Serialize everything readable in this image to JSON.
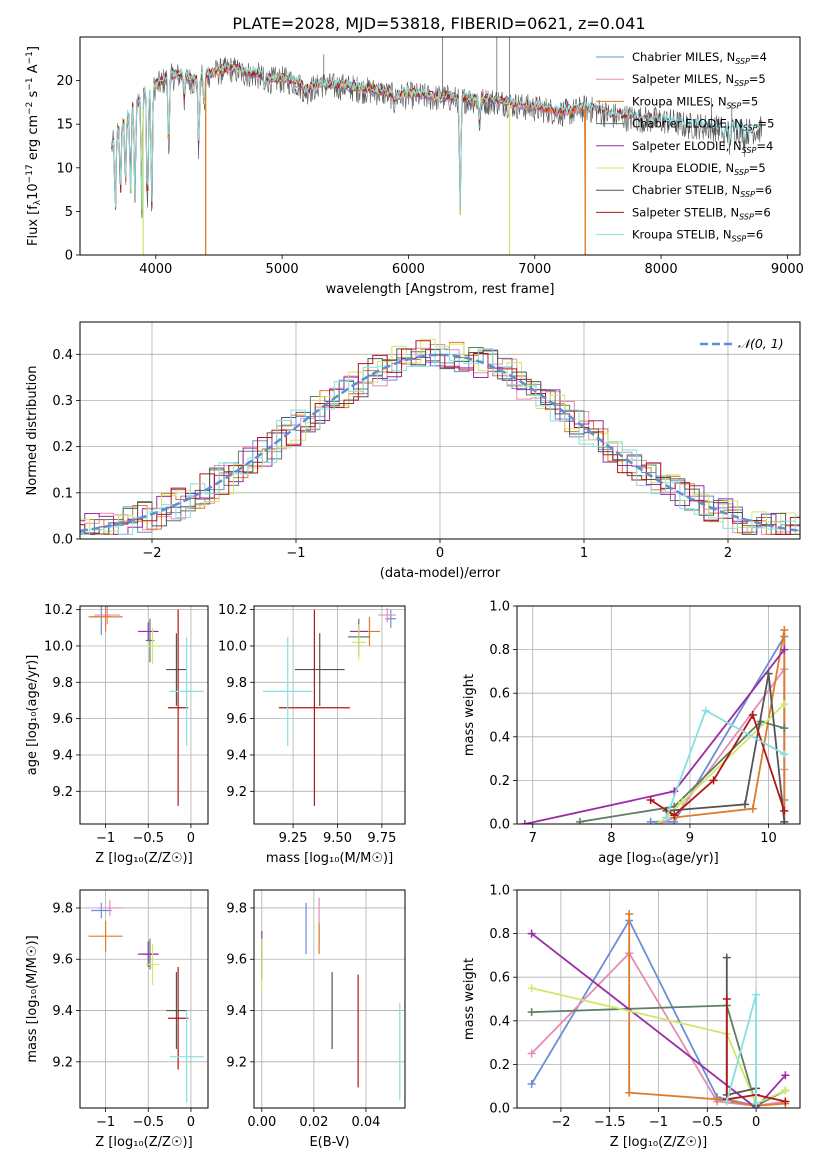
{
  "figure": {
    "title": "PLATE=2028, MJD=53818, FIBERID=0621, z=0.041"
  },
  "palette": {
    "Chabrier MILES": "#6a8fd8",
    "Salpeter MILES": "#e68cb6",
    "Kroupa MILES": "#e07b28",
    "Chabrier ELODIE": "#5e7f63",
    "Salpeter ELODIE": "#9a2ca6",
    "Kroupa ELODIE": "#cfe86a",
    "Chabrier STELIB": "#555555",
    "Salpeter STELIB": "#b01818",
    "Kroupa STELIB": "#86e0e0",
    "gauss": "#5b8fd8"
  },
  "chart_data": [
    {
      "id": "spectrum",
      "type": "line",
      "title": "PLATE=2028, MJD=53818, FIBERID=0621, z=0.041",
      "xlabel": "wavelength [Angstrom, rest frame]",
      "ylabel_parts": [
        "Flux [f",
        "λ",
        "10",
        "−17",
        " erg cm",
        "−2",
        " s",
        "−1",
        " A",
        "−1",
        "]"
      ],
      "xlim": [
        3400,
        9100
      ],
      "ylim": [
        0,
        25
      ],
      "xticks": [
        4000,
        5000,
        6000,
        7000,
        8000,
        9000
      ],
      "yticks": [
        0,
        5,
        10,
        15,
        20
      ],
      "grid": false,
      "legend_position": "top-right",
      "legend": [
        {
          "name": "Chabrier MILES",
          "n": 4
        },
        {
          "name": "Salpeter MILES",
          "n": 5
        },
        {
          "name": "Kroupa MILES",
          "n": 5
        },
        {
          "name": "Chabrier ELODIE",
          "n": 5
        },
        {
          "name": "Salpeter ELODIE",
          "n": 4
        },
        {
          "name": "Kroupa ELODIE",
          "n": 5
        },
        {
          "name": "Chabrier STELIB",
          "n": 6
        },
        {
          "name": "Salpeter STELIB",
          "n": 6
        },
        {
          "name": "Kroupa STELIB",
          "n": 6
        }
      ],
      "continuum": [
        [
          3650,
          12.5
        ],
        [
          3700,
          14.5
        ],
        [
          3800,
          16.5
        ],
        [
          3900,
          18.8
        ],
        [
          4000,
          19.5
        ],
        [
          4100,
          20.5
        ],
        [
          4200,
          20.8
        ],
        [
          4300,
          20.0
        ],
        [
          4400,
          20.8
        ],
        [
          4500,
          21.2
        ],
        [
          4600,
          21.5
        ],
        [
          4700,
          21.0
        ],
        [
          4800,
          20.8
        ],
        [
          4900,
          20.2
        ],
        [
          5000,
          20.3
        ],
        [
          5100,
          20.0
        ],
        [
          5200,
          19.0
        ],
        [
          5300,
          19.8
        ],
        [
          5400,
          19.5
        ],
        [
          5500,
          19.5
        ],
        [
          5600,
          19.2
        ],
        [
          5700,
          19.0
        ],
        [
          5800,
          18.8
        ],
        [
          5900,
          18.3
        ],
        [
          6000,
          18.5
        ],
        [
          6100,
          18.4
        ],
        [
          6200,
          18.2
        ],
        [
          6300,
          18.2
        ],
        [
          6400,
          18.0
        ],
        [
          6500,
          18.0
        ],
        [
          6600,
          17.8
        ],
        [
          6700,
          17.8
        ],
        [
          6800,
          17.5
        ],
        [
          6900,
          17.2
        ],
        [
          7000,
          17.0
        ],
        [
          7100,
          16.8
        ],
        [
          7200,
          16.5
        ],
        [
          7300,
          16.6
        ],
        [
          7400,
          17.0
        ],
        [
          7500,
          16.7
        ],
        [
          7600,
          16.2
        ],
        [
          7700,
          16.0
        ],
        [
          7800,
          15.8
        ],
        [
          7900,
          15.7
        ],
        [
          8000,
          15.6
        ],
        [
          8100,
          15.4
        ],
        [
          8200,
          15.0
        ],
        [
          8300,
          15.0
        ],
        [
          8400,
          14.8
        ],
        [
          8500,
          14.6
        ],
        [
          8600,
          14.6
        ],
        [
          8700,
          14.4
        ],
        [
          8800,
          14.6
        ]
      ],
      "absorption": [
        [
          3680,
          5.0
        ],
        [
          3720,
          7.0
        ],
        [
          3760,
          8.0
        ],
        [
          3800,
          7.0
        ],
        [
          3835,
          6.0
        ],
        [
          3889,
          5.0
        ],
        [
          3934,
          4.5
        ],
        [
          3968,
          5.0
        ],
        [
          4102,
          12.0
        ],
        [
          4226,
          18.0
        ],
        [
          4340,
          12.0
        ],
        [
          4383,
          17.0
        ],
        [
          4861,
          19.0
        ],
        [
          5175,
          18.5
        ],
        [
          5270,
          19.0
        ],
        [
          5890,
          17.5
        ],
        [
          6410,
          5.0
        ],
        [
          6563,
          15.0
        ],
        [
          8498,
          13.0
        ],
        [
          8542,
          12.5
        ],
        [
          8662,
          13.0
        ]
      ],
      "spikes": [
        [
          5330,
          23.0
        ],
        [
          6270,
          25.0
        ],
        [
          6700,
          25.0
        ],
        [
          6800,
          25.0
        ],
        [
          8400,
          18.0
        ],
        [
          8560,
          17.5
        ]
      ]
    },
    {
      "id": "residuals",
      "type": "histogram",
      "xlabel": "(data-model)/error",
      "ylabel": "Normed distribution",
      "xlim": [
        -2.5,
        2.5
      ],
      "ylim": [
        0,
        0.47
      ],
      "xticks": [
        -2,
        -1,
        0,
        1,
        2
      ],
      "yticks": [
        0.0,
        0.1,
        0.2,
        0.3,
        0.4
      ],
      "grid": true,
      "legend_position": "top-right",
      "legend_label": "𝒩(0, 1)",
      "gauss_mu": 0,
      "gauss_sigma": 1,
      "bin_width": 0.1
    },
    {
      "id": "age-vs-Z",
      "type": "scatter",
      "xlabel": "Z [log₁₀(Z/Z☉)]",
      "ylabel": "age  [log₁₀(age/yr)]",
      "xlim": [
        -1.3,
        0.2
      ],
      "ylim": [
        9.02,
        10.22
      ],
      "xticks": [
        -1.0,
        -0.5,
        0.0
      ],
      "yticks": [
        9.2,
        9.4,
        9.6,
        9.8,
        10.0,
        10.2
      ],
      "grid": true,
      "points": [
        {
          "model": "Chabrier MILES",
          "x": -1.05,
          "y": 10.16,
          "xerr": 0.12,
          "yerr": 0.1
        },
        {
          "model": "Salpeter MILES",
          "x": -0.98,
          "y": 10.17,
          "xerr": 0.15,
          "yerr": 0.05
        },
        {
          "model": "Kroupa MILES",
          "x": -1.0,
          "y": 10.16,
          "xerr": 0.2,
          "yerr": 0.08
        },
        {
          "model": "Chabrier ELODIE",
          "x": -0.48,
          "y": 10.03,
          "xerr": 0.05,
          "yerr": 0.12
        },
        {
          "model": "Salpeter ELODIE",
          "x": -0.5,
          "y": 10.08,
          "xerr": 0.12,
          "yerr": 0.05
        },
        {
          "model": "Kroupa ELODIE",
          "x": -0.45,
          "y": 10.0,
          "xerr": 0.08,
          "yerr": 0.1
        },
        {
          "model": "Chabrier STELIB",
          "x": -0.17,
          "y": 9.87,
          "xerr": 0.12,
          "yerr": 0.2
        },
        {
          "model": "Salpeter STELIB",
          "x": -0.15,
          "y": 9.66,
          "xerr": 0.12,
          "yerr": 0.54
        },
        {
          "model": "Kroupa STELIB",
          "x": -0.05,
          "y": 9.75,
          "xerr": 0.2,
          "yerr": 0.3
        }
      ]
    },
    {
      "id": "age-vs-mass",
      "type": "scatter",
      "xlabel": "mass [log₁₀(M/M☉)]",
      "ylabel": "",
      "xlim": [
        9.03,
        9.88
      ],
      "ylim": [
        9.02,
        10.22
      ],
      "xticks": [
        9.25,
        9.5,
        9.75
      ],
      "yticks": [
        9.2,
        9.4,
        9.6,
        9.8,
        10.0,
        10.2
      ],
      "xticklabels": [
        "9.25",
        "9.50",
        "9.75"
      ],
      "grid": true,
      "points": [
        {
          "model": "Chabrier MILES",
          "x": 9.8,
          "y": 10.15,
          "xerr": 0.03,
          "yerr": 0.05
        },
        {
          "model": "Salpeter MILES",
          "x": 9.78,
          "y": 10.17,
          "xerr": 0.05,
          "yerr": 0.04
        },
        {
          "model": "Kroupa MILES",
          "x": 9.68,
          "y": 10.08,
          "xerr": 0.06,
          "yerr": 0.08
        },
        {
          "model": "Chabrier ELODIE",
          "x": 9.62,
          "y": 10.05,
          "xerr": 0.06,
          "yerr": 0.1
        },
        {
          "model": "Salpeter ELODIE",
          "x": 9.62,
          "y": 10.08,
          "xerr": 0.05,
          "yerr": 0.04
        },
        {
          "model": "Kroupa ELODIE",
          "x": 9.62,
          "y": 10.02,
          "xerr": 0.04,
          "yerr": 0.1
        },
        {
          "model": "Chabrier STELIB",
          "x": 9.4,
          "y": 9.87,
          "xerr": 0.14,
          "yerr": 0.2
        },
        {
          "model": "Salpeter STELIB",
          "x": 9.37,
          "y": 9.66,
          "xerr": 0.2,
          "yerr": 0.54
        },
        {
          "model": "Kroupa STELIB",
          "x": 9.22,
          "y": 9.75,
          "xerr": 0.14,
          "yerr": 0.3
        }
      ]
    },
    {
      "id": "mass-weight-vs-age",
      "type": "line",
      "xlabel": "age  [log₁₀(age/yr)]",
      "ylabel": "mass weight",
      "xlim": [
        6.8,
        10.4
      ],
      "ylim": [
        0,
        1.0
      ],
      "xticks": [
        7,
        8,
        9,
        10
      ],
      "yticks": [
        0.0,
        0.2,
        0.4,
        0.6,
        0.8,
        1.0
      ],
      "grid": true,
      "series": [
        {
          "model": "Chabrier MILES",
          "x": [
            8.5,
            8.8,
            10.2,
            10.2
          ],
          "y": [
            0.01,
            0.01,
            0.86,
            0.11
          ]
        },
        {
          "model": "Salpeter MILES",
          "x": [
            8.6,
            8.8,
            10.2,
            10.2,
            10.2
          ],
          "y": [
            0.0,
            0.03,
            0.71,
            0.25,
            0.01
          ]
        },
        {
          "model": "Kroupa MILES",
          "x": [
            8.8,
            9.8,
            10.2,
            10.2
          ],
          "y": [
            0.03,
            0.07,
            0.89,
            0.01
          ]
        },
        {
          "model": "Chabrier ELODIE",
          "x": [
            7.6,
            8.8,
            9.9,
            10.2
          ],
          "y": [
            0.01,
            0.08,
            0.47,
            0.44
          ]
        },
        {
          "model": "Salpeter ELODIE",
          "x": [
            6.9,
            8.8,
            10.2
          ],
          "y": [
            0.0,
            0.15,
            0.8
          ]
        },
        {
          "model": "Kroupa ELODIE",
          "x": [
            8.6,
            8.9,
            10.2
          ],
          "y": [
            0.0,
            0.1,
            0.55
          ]
        },
        {
          "model": "Chabrier STELIB",
          "x": [
            8.7,
            9.7,
            10.0,
            10.2
          ],
          "y": [
            0.06,
            0.09,
            0.69,
            0.01
          ]
        },
        {
          "model": "Salpeter STELIB",
          "x": [
            8.5,
            8.8,
            9.3,
            9.8,
            10.2
          ],
          "y": [
            0.11,
            0.04,
            0.2,
            0.5,
            0.06
          ]
        },
        {
          "model": "Kroupa STELIB",
          "x": [
            8.7,
            9.2,
            10.2
          ],
          "y": [
            0.03,
            0.52,
            0.32
          ]
        }
      ]
    },
    {
      "id": "mass-vs-Z",
      "type": "scatter",
      "xlabel": "Z [log₁₀(Z/Z☉)]",
      "ylabel": "mass [log₁₀(M/M☉)]",
      "xlim": [
        -1.3,
        0.2
      ],
      "ylim": [
        9.02,
        9.87
      ],
      "xticks": [
        -1.0,
        -0.5,
        0.0
      ],
      "yticks": [
        9.2,
        9.4,
        9.6,
        9.8
      ],
      "grid": true,
      "points": [
        {
          "model": "Chabrier MILES",
          "x": -1.05,
          "y": 9.79,
          "xerr": 0.12,
          "yerr": 0.03
        },
        {
          "model": "Salpeter MILES",
          "x": -0.95,
          "y": 9.8,
          "xerr": 0.15,
          "yerr": 0.03
        },
        {
          "model": "Kroupa MILES",
          "x": -1.0,
          "y": 9.69,
          "xerr": 0.2,
          "yerr": 0.06
        },
        {
          "model": "Chabrier ELODIE",
          "x": -0.48,
          "y": 9.62,
          "xerr": 0.1,
          "yerr": 0.06
        },
        {
          "model": "Salpeter ELODIE",
          "x": -0.5,
          "y": 9.62,
          "xerr": 0.12,
          "yerr": 0.05
        },
        {
          "model": "Kroupa ELODIE",
          "x": -0.45,
          "y": 9.58,
          "xerr": 0.08,
          "yerr": 0.08
        },
        {
          "model": "Chabrier STELIB",
          "x": -0.17,
          "y": 9.4,
          "xerr": 0.12,
          "yerr": 0.15
        },
        {
          "model": "Salpeter STELIB",
          "x": -0.15,
          "y": 9.37,
          "xerr": 0.12,
          "yerr": 0.2
        },
        {
          "model": "Kroupa STELIB",
          "x": -0.05,
          "y": 9.22,
          "xerr": 0.2,
          "yerr": 0.18
        }
      ]
    },
    {
      "id": "mass-vs-ebv",
      "type": "scatter",
      "xlabel": "E(B-V)",
      "ylabel": "",
      "xlim": [
        -0.003,
        0.055
      ],
      "ylim": [
        9.02,
        9.87
      ],
      "xticks": [
        0.0,
        0.02,
        0.04
      ],
      "xticklabels": [
        "0.00",
        "0.02",
        "0.04"
      ],
      "yticks": [
        9.2,
        9.4,
        9.6,
        9.8
      ],
      "grid": true,
      "points": [
        {
          "model": "Chabrier MILES",
          "x": 0.017,
          "y": 9.72,
          "xerr": 0,
          "yerr": 0.1
        },
        {
          "model": "Salpeter MILES",
          "x": 0.022,
          "y": 9.74,
          "xerr": 0,
          "yerr": 0.1
        },
        {
          "model": "Kroupa MILES",
          "x": 0.022,
          "y": 9.68,
          "xerr": 0,
          "yerr": 0.06
        },
        {
          "model": "Chabrier ELODIE",
          "x": 0.0,
          "y": 9.6,
          "xerr": 0,
          "yerr": 0.08
        },
        {
          "model": "Salpeter ELODIE",
          "x": 0.0,
          "y": 9.62,
          "xerr": 0,
          "yerr": 0.09
        },
        {
          "model": "Kroupa ELODIE",
          "x": 0.0,
          "y": 9.58,
          "xerr": 0,
          "yerr": 0.1
        },
        {
          "model": "Chabrier STELIB",
          "x": 0.027,
          "y": 9.4,
          "xerr": 0,
          "yerr": 0.15
        },
        {
          "model": "Salpeter STELIB",
          "x": 0.037,
          "y": 9.32,
          "xerr": 0,
          "yerr": 0.22
        },
        {
          "model": "Kroupa STELIB",
          "x": 0.053,
          "y": 9.24,
          "xerr": 0,
          "yerr": 0.19
        }
      ]
    },
    {
      "id": "mass-weight-vs-Z",
      "type": "line",
      "xlabel": "Z [log₁₀(Z/Z☉)]",
      "ylabel": "mass weight",
      "xlim": [
        -2.45,
        0.45
      ],
      "ylim": [
        0,
        1.0
      ],
      "xticks": [
        -2.0,
        -1.5,
        -1.0,
        -0.5,
        0.0
      ],
      "yticks": [
        0.0,
        0.2,
        0.4,
        0.6,
        0.8,
        1.0
      ],
      "grid": true,
      "series": [
        {
          "model": "Chabrier MILES",
          "x": [
            -2.3,
            -1.3,
            -0.4,
            0.0
          ],
          "y": [
            0.11,
            0.86,
            0.05,
            0.01
          ]
        },
        {
          "model": "Salpeter MILES",
          "x": [
            -2.3,
            -1.3,
            -0.4,
            0.0,
            0.3
          ],
          "y": [
            0.25,
            0.71,
            0.03,
            0.01,
            0.03
          ]
        },
        {
          "model": "Kroupa MILES",
          "x": [
            -1.3,
            -1.3,
            -0.4,
            0.0,
            0.3
          ],
          "y": [
            0.89,
            0.07,
            0.04,
            0.01,
            0.02
          ]
        },
        {
          "model": "Chabrier ELODIE",
          "x": [
            -2.3,
            -0.3,
            0.0,
            0.3
          ],
          "y": [
            0.44,
            0.47,
            0.01,
            0.08
          ]
        },
        {
          "model": "Salpeter ELODIE",
          "x": [
            -2.3,
            0.0,
            0.3
          ],
          "y": [
            0.8,
            0.0,
            0.15
          ]
        },
        {
          "model": "Kroupa ELODIE",
          "x": [
            -2.3,
            -0.3,
            0.0,
            0.3
          ],
          "y": [
            0.55,
            0.34,
            0.02,
            0.08
          ]
        },
        {
          "model": "Chabrier STELIB",
          "x": [
            -0.3,
            -0.3,
            0.0,
            0.0
          ],
          "y": [
            0.69,
            0.06,
            0.09,
            0.01
          ]
        },
        {
          "model": "Salpeter STELIB",
          "x": [
            -0.3,
            -0.3,
            0.0,
            0.3
          ],
          "y": [
            0.5,
            0.04,
            0.06,
            0.03
          ]
        },
        {
          "model": "Kroupa STELIB",
          "x": [
            -0.3,
            0.0,
            0.0
          ],
          "y": [
            0.03,
            0.52,
            0.02
          ]
        }
      ]
    }
  ]
}
